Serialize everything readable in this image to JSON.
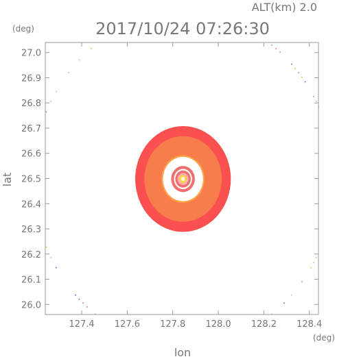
{
  "header": {
    "alt_label": "ALT(km)  2.0",
    "timestamp": "2017/10/24 07:26:30"
  },
  "chart_data": {
    "type": "heatmap",
    "title": "2017/10/24 07:26:30",
    "xlabel": "lon",
    "ylabel": "lat",
    "x_unit": "(deg)",
    "y_unit": "(deg)",
    "xlim": [
      127.24,
      128.44
    ],
    "ylim": [
      25.96,
      27.04
    ],
    "x_ticks": [
      127.4,
      127.6,
      127.8,
      128.0,
      128.2,
      128.4
    ],
    "x_tick_labels": [
      "127.4",
      "127.6",
      "127.8",
      "128.0",
      "128.2",
      "128.4"
    ],
    "y_ticks": [
      26.0,
      26.1,
      26.2,
      26.3,
      26.4,
      26.5,
      26.6,
      26.7,
      26.8,
      26.9,
      27.0
    ],
    "y_tick_labels": [
      "26.0",
      "26.1",
      "26.2",
      "26.3",
      "26.4",
      "26.5",
      "26.6",
      "26.7",
      "26.8",
      "26.9",
      "27.0"
    ],
    "center": {
      "lon": 127.845,
      "lat": 26.498
    },
    "echo_rings": [
      {
        "radius_deg": 0.21,
        "color": "#fb5050"
      },
      {
        "radius_deg": 0.17,
        "color": "#f77d4d"
      },
      {
        "radius_deg": 0.095,
        "color": "#ff9f46"
      },
      {
        "radius_deg": 0.088,
        "color": "#ffffff"
      },
      {
        "radius_deg": 0.06,
        "color": "#ffffff"
      },
      {
        "radius_deg": 0.052,
        "color": "#f07070"
      },
      {
        "radius_deg": 0.04,
        "color": "#ffffff"
      },
      {
        "radius_deg": 0.034,
        "color": "#f07070"
      },
      {
        "radius_deg": 0.024,
        "color": "#fbb0b0"
      },
      {
        "radius_deg": 0.016,
        "color": "#ffd24a"
      },
      {
        "radius_deg": 0.008,
        "color": "#fffde0"
      }
    ],
    "outer_range_ring_radius_deg": 0.66,
    "outer_ring_colors": [
      "#9dd46a",
      "#c8c040",
      "#4a6ad8",
      "#e07060"
    ]
  }
}
